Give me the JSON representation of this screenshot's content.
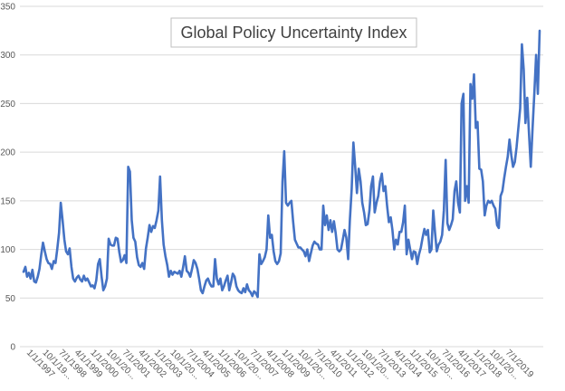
{
  "chart_data": {
    "type": "line",
    "title": "Global Policy Uncertainty Index",
    "xlabel": "",
    "ylabel": "",
    "ylim": [
      0,
      350
    ],
    "yticks": [
      0,
      50,
      100,
      150,
      200,
      250,
      300,
      350
    ],
    "grid": "horizontal",
    "legend": "none",
    "x_tick_labels": [
      "1/1/1997",
      "10/1/19...",
      "7/1/1998",
      "4/1/1999",
      "1/1/2000",
      "10/1/20...",
      "7/1/2001",
      "4/1/2002",
      "1/1/2003",
      "10/1/20...",
      "7/1/2004",
      "4/1/2005",
      "1/1/2006",
      "10/1/20...",
      "7/1/2007",
      "4/1/2008",
      "1/1/2009",
      "10/1/20...",
      "7/1/2010",
      "4/1/2011",
      "1/1/2012",
      "10/1/20...",
      "7/1/2013",
      "4/1/2014",
      "1/1/2015",
      "10/1/20...",
      "7/1/2016",
      "4/1/2017",
      "1/1/2018",
      "10/1/20...",
      "7/1/2019"
    ],
    "series_color": "#4472c4",
    "series": [
      {
        "start": "1997-01",
        "frequency": "monthly",
        "values": [
          77,
          82,
          72,
          76,
          70,
          79,
          67,
          66,
          72,
          80,
          95,
          107,
          98,
          90,
          86,
          85,
          80,
          88,
          86,
          100,
          117,
          148,
          130,
          110,
          98,
          95,
          101,
          82,
          70,
          67,
          71,
          73,
          69,
          67,
          73,
          68,
          70,
          66,
          62,
          63,
          60,
          68,
          85,
          90,
          72,
          58,
          62,
          70,
          111,
          105,
          104,
          104,
          112,
          111,
          97,
          87,
          89,
          94,
          86,
          185,
          180,
          130,
          112,
          108,
          92,
          84,
          82,
          86,
          80,
          101,
          112,
          125,
          118,
          124,
          122,
          130,
          140,
          175,
          130,
          105,
          93,
          84,
          72,
          78,
          74,
          77,
          76,
          75,
          78,
          72,
          82,
          93,
          78,
          76,
          72,
          80,
          89,
          86,
          80,
          70,
          58,
          55,
          62,
          68,
          70,
          65,
          62,
          62,
          90,
          70,
          64,
          70,
          58,
          62,
          68,
          73,
          58,
          66,
          75,
          72,
          62,
          58,
          56,
          55,
          60,
          56,
          64,
          58,
          56,
          52,
          57,
          55,
          51,
          95,
          85,
          88,
          92,
          100,
          135,
          112,
          115,
          98,
          88,
          85,
          88,
          96,
          170,
          201,
          148,
          145,
          148,
          150,
          129,
          110,
          106,
          102,
          102,
          100,
          98,
          93,
          100,
          88,
          96,
          104,
          108,
          106,
          105,
          100,
          100,
          145,
          125,
          135,
          120,
          130,
          118,
          129,
          117,
          100,
          98,
          100,
          110,
          120,
          112,
          90,
          130,
          162,
          210,
          185,
          158,
          183,
          170,
          148,
          138,
          125,
          126,
          140,
          165,
          175,
          138,
          148,
          155,
          170,
          178,
          160,
          165,
          145,
          128,
          133,
          120,
          100,
          110,
          105,
          118,
          118,
          128,
          145,
          95,
          110,
          100,
          90,
          98,
          97,
          85,
          95,
          102,
          112,
          121,
          115,
          120,
          97,
          100,
          140,
          118,
          98,
          105,
          108,
          115,
          140,
          192,
          127,
          120,
          125,
          131,
          160,
          170,
          148,
          138,
          250,
          260,
          150,
          165,
          148,
          270,
          255,
          280,
          225,
          231,
          183,
          182,
          170,
          135,
          145,
          150,
          148,
          150,
          145,
          142,
          125,
          122,
          155,
          160,
          173,
          185,
          195,
          213,
          197,
          185,
          190,
          205,
          225,
          245,
          311,
          285,
          230,
          256,
          220,
          185,
          225,
          260,
          300,
          260,
          325
        ]
      }
    ]
  }
}
